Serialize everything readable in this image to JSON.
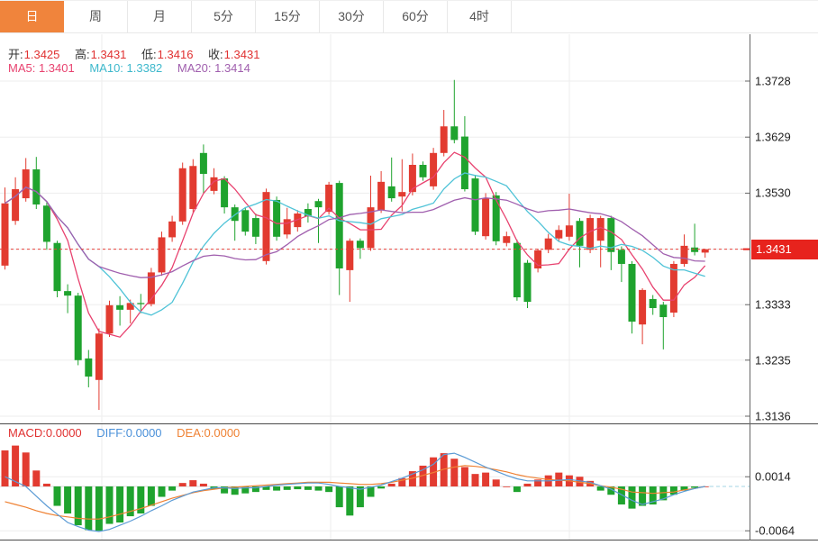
{
  "toolbar": {
    "tabs": [
      {
        "label": "日",
        "active": true
      },
      {
        "label": "周",
        "active": false
      },
      {
        "label": "月",
        "active": false
      },
      {
        "label": "5分",
        "active": false
      },
      {
        "label": "15分",
        "active": false
      },
      {
        "label": "30分",
        "active": false
      },
      {
        "label": "60分",
        "active": false
      },
      {
        "label": "4时",
        "active": false
      }
    ]
  },
  "quote": {
    "open_label": "开:",
    "open_value": "1.3425",
    "high_label": "高:",
    "high_value": "1.3431",
    "low_label": "低:",
    "low_value": "1.3416",
    "close_label": "收:",
    "close_value": "1.3431"
  },
  "ma_legend": {
    "ma5": "MA5: 1.3401",
    "ma10": "MA10: 1.3382",
    "ma20": "MA20: 1.3414"
  },
  "macd_legend": {
    "macd": "MACD:0.0000",
    "diff": "DIFF:0.0000",
    "dea": "DEA:0.0000"
  },
  "price_axis": {
    "tick_labels": [
      "1.3728",
      "1.3629",
      "1.3530",
      "1.3431",
      "1.3333",
      "1.3235",
      "1.3136"
    ],
    "current_label": "1.3431"
  },
  "macd_axis": {
    "tick_labels": [
      "0.0014",
      "-0.0064"
    ]
  },
  "colors": {
    "up": "#e23b30",
    "down": "#1fa32e",
    "ma5": "#e8426f",
    "ma10": "#4fc3d7",
    "ma20": "#a05fae",
    "dif_line": "#5b9bd5",
    "dea_line": "#ef8234",
    "tab_active_bg": "#f0843c",
    "price_tag_bg": "#e7231d",
    "dotted_price_line": "#e8423c",
    "quote_value": "#e03131",
    "grid": "#ededed",
    "axis": "#666666",
    "panel_border": "#4a4a4a",
    "macd_zero_solid": "#d9d9d9",
    "macd_zero_dashed": "#a5d6e4"
  },
  "chart_data": {
    "type": "candlestick",
    "title": "",
    "price_range": {
      "top": 1.3728,
      "bottom": 1.3136
    },
    "price_ticks": [
      1.3728,
      1.3629,
      1.353,
      1.3431,
      1.3333,
      1.3235,
      1.3136
    ],
    "current_price": 1.3431,
    "ma_windows": [
      5,
      10,
      20
    ],
    "candles_ohlc": [
      [
        1.3402,
        1.354,
        1.3395,
        1.3512
      ],
      [
        1.3481,
        1.3558,
        1.3474,
        1.3537
      ],
      [
        1.3521,
        1.3592,
        1.3515,
        1.3572
      ],
      [
        1.3572,
        1.3594,
        1.3502,
        1.351
      ],
      [
        1.3508,
        1.3514,
        1.343,
        1.3444
      ],
      [
        1.3442,
        1.3446,
        1.3346,
        1.3357
      ],
      [
        1.3357,
        1.3369,
        1.3318,
        1.3349
      ],
      [
        1.3349,
        1.3354,
        1.3226,
        1.3235
      ],
      [
        1.3238,
        1.3253,
        1.3187,
        1.3206
      ],
      [
        1.32,
        1.3291,
        1.3147,
        1.3282
      ],
      [
        1.3282,
        1.334,
        1.3276,
        1.3332
      ],
      [
        1.3332,
        1.3348,
        1.3296,
        1.3324
      ],
      [
        1.3324,
        1.3342,
        1.33,
        1.3336
      ],
      [
        1.3336,
        1.3352,
        1.3318,
        1.3334
      ],
      [
        1.3334,
        1.3398,
        1.333,
        1.339
      ],
      [
        1.339,
        1.3462,
        1.3384,
        1.3452
      ],
      [
        1.3452,
        1.349,
        1.3444,
        1.348
      ],
      [
        1.348,
        1.3584,
        1.3474,
        1.3574
      ],
      [
        1.3502,
        1.359,
        1.3496,
        1.3578
      ],
      [
        1.3601,
        1.3616,
        1.353,
        1.3564
      ],
      [
        1.3534,
        1.3574,
        1.3528,
        1.3558
      ],
      [
        1.3556,
        1.356,
        1.3494,
        1.3505
      ],
      [
        1.3505,
        1.351,
        1.3446,
        1.3481
      ],
      [
        1.35,
        1.3505,
        1.3455,
        1.3462
      ],
      [
        1.3486,
        1.3494,
        1.344,
        1.3453
      ],
      [
        1.341,
        1.3538,
        1.3404,
        1.3532
      ],
      [
        1.3518,
        1.3524,
        1.3446,
        1.3453
      ],
      [
        1.3457,
        1.3504,
        1.345,
        1.3484
      ],
      [
        1.347,
        1.35,
        1.3462,
        1.3494
      ],
      [
        1.3502,
        1.3512,
        1.3478,
        1.3489
      ],
      [
        1.3516,
        1.352,
        1.3442,
        1.3505
      ],
      [
        1.3497,
        1.355,
        1.3492,
        1.3545
      ],
      [
        1.3548,
        1.3552,
        1.335,
        1.3397
      ],
      [
        1.3394,
        1.345,
        1.3338,
        1.3446
      ],
      [
        1.3446,
        1.345,
        1.3414,
        1.3433
      ],
      [
        1.3433,
        1.3561,
        1.3428,
        1.3505
      ],
      [
        1.35,
        1.3569,
        1.3495,
        1.355
      ],
      [
        1.3542,
        1.3593,
        1.3515,
        1.3521
      ],
      [
        1.3524,
        1.359,
        1.3498,
        1.3532
      ],
      [
        1.3532,
        1.36,
        1.3526,
        1.358
      ],
      [
        1.358,
        1.3586,
        1.3552,
        1.3558
      ],
      [
        1.3542,
        1.361,
        1.3536,
        1.3601
      ],
      [
        1.3601,
        1.3677,
        1.3595,
        1.3648
      ],
      [
        1.3648,
        1.373,
        1.3618,
        1.3624
      ],
      [
        1.363,
        1.3666,
        1.3533,
        1.3537
      ],
      [
        1.3556,
        1.3562,
        1.3456,
        1.3462
      ],
      [
        1.3454,
        1.353,
        1.3448,
        1.3521
      ],
      [
        1.3526,
        1.3532,
        1.3438,
        1.3445
      ],
      [
        1.3442,
        1.3462,
        1.3436,
        1.3454
      ],
      [
        1.3442,
        1.3448,
        1.334,
        1.3346
      ],
      [
        1.3407,
        1.3412,
        1.3327,
        1.3338
      ],
      [
        1.3397,
        1.3432,
        1.339,
        1.3429
      ],
      [
        1.343,
        1.3458,
        1.3424,
        1.345
      ],
      [
        1.345,
        1.3473,
        1.3444,
        1.3465
      ],
      [
        1.3453,
        1.3529,
        1.3446,
        1.3473
      ],
      [
        1.3481,
        1.3486,
        1.3399,
        1.3437
      ],
      [
        1.343,
        1.3492,
        1.3424,
        1.3486
      ],
      [
        1.3446,
        1.349,
        1.3399,
        1.3486
      ],
      [
        1.3486,
        1.349,
        1.3394,
        1.3426
      ],
      [
        1.343,
        1.3436,
        1.3373,
        1.3405
      ],
      [
        1.3405,
        1.341,
        1.3282,
        1.3303
      ],
      [
        1.3298,
        1.3362,
        1.3263,
        1.3359
      ],
      [
        1.3343,
        1.335,
        1.3315,
        1.3327
      ],
      [
        1.3333,
        1.3338,
        1.3254,
        1.3311
      ],
      [
        1.3319,
        1.341,
        1.3311,
        1.3405
      ],
      [
        1.3405,
        1.3457,
        1.34,
        1.3437
      ],
      [
        1.3434,
        1.3476,
        1.342,
        1.3426
      ],
      [
        1.3425,
        1.3431,
        1.3416,
        1.3431
      ]
    ],
    "macd": {
      "ticks": [
        0.0014,
        -0.0064
      ],
      "histogram": [
        0.0052,
        0.0059,
        0.0049,
        0.0023,
        0.0004,
        -0.0028,
        -0.0039,
        -0.0056,
        -0.0063,
        -0.0064,
        -0.0054,
        -0.0052,
        -0.0043,
        -0.0039,
        -0.0028,
        -0.0015,
        -0.0006,
        0.0005,
        0.0009,
        0.0004,
        -0.0004,
        -0.001,
        -0.0012,
        -0.001,
        -0.0008,
        -0.0005,
        -0.0006,
        -0.0005,
        -0.0004,
        -0.0005,
        -0.0006,
        -0.0008,
        -0.003,
        -0.0042,
        -0.003,
        -0.0015,
        -0.0003,
        0.0004,
        0.0012,
        0.0022,
        0.003,
        0.0042,
        0.0048,
        0.004,
        0.0028,
        0.0018,
        0.002,
        0.001,
        0.0,
        -0.0008,
        0.0004,
        0.001,
        0.0016,
        0.002,
        0.0016,
        0.0014,
        0.0008,
        -0.0006,
        -0.0012,
        -0.0026,
        -0.0032,
        -0.0028,
        -0.0026,
        -0.002,
        -0.0012,
        -0.0006,
        -0.0002,
        0.0
      ],
      "dif": [
        0.0014,
        0.0007,
        0.0,
        -0.0014,
        -0.0028,
        -0.004,
        -0.0052,
        -0.0058,
        -0.0063,
        -0.0065,
        -0.0062,
        -0.0056,
        -0.005,
        -0.0043,
        -0.0035,
        -0.0028,
        -0.002,
        -0.0014,
        -0.0008,
        -0.0005,
        -0.0002,
        -0.0002,
        -0.0003,
        -0.0002,
        -0.0002,
        0.0,
        0.0002,
        0.0003,
        0.0004,
        0.0005,
        0.0005,
        0.0003,
        0.0,
        -0.0002,
        -0.0004,
        -0.0001,
        0.0002,
        0.0007,
        0.0012,
        0.0018,
        0.0024,
        0.0032,
        0.0046,
        0.0048,
        0.0042,
        0.0035,
        0.0028,
        0.0022,
        0.0016,
        0.0011,
        0.0008,
        0.0008,
        0.0008,
        0.0009,
        0.001,
        0.0008,
        0.0006,
        0.0001,
        -0.0004,
        -0.0012,
        -0.002,
        -0.0026,
        -0.0022,
        -0.0018,
        -0.0012,
        -0.0007,
        -0.0003,
        0.0
      ],
      "dea": [
        -0.0022,
        -0.0026,
        -0.003,
        -0.0035,
        -0.0039,
        -0.0042,
        -0.0044,
        -0.0046,
        -0.0047,
        -0.0047,
        -0.0044,
        -0.004,
        -0.0036,
        -0.0032,
        -0.0027,
        -0.0022,
        -0.0017,
        -0.0013,
        -0.0009,
        -0.0006,
        -0.0004,
        -0.0002,
        -0.0001,
        0.0,
        0.0001,
        0.0002,
        0.0003,
        0.0004,
        0.0005,
        0.0006,
        0.0006,
        0.0006,
        0.0005,
        0.0004,
        0.0003,
        0.0003,
        0.0004,
        0.0006,
        0.0009,
        0.0012,
        0.0016,
        0.002,
        0.0025,
        0.0028,
        0.003,
        0.0029,
        0.0027,
        0.0024,
        0.0021,
        0.0017,
        0.0014,
        0.0012,
        0.001,
        0.0009,
        0.0008,
        0.0006,
        0.0004,
        0.0001,
        -0.0001,
        -0.0004,
        -0.0008,
        -0.0009,
        -0.001,
        -0.0009,
        -0.0008,
        -0.0005,
        -0.0003,
        0.0
      ]
    }
  }
}
